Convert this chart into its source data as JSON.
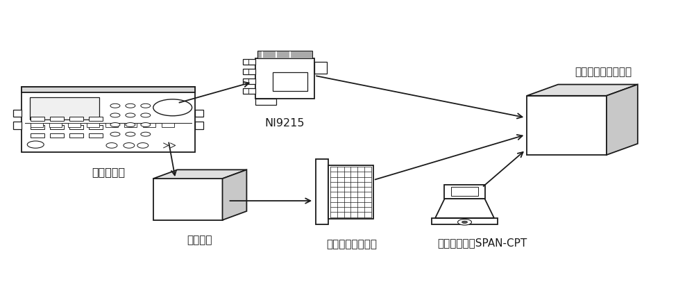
{
  "bg_color": "#ffffff",
  "line_color": "#1a1a1a",
  "fig_width": 10.0,
  "fig_height": 4.29,
  "labels": {
    "signal_gen": "信号发生器",
    "ni9215": "NI9215",
    "data_acq": "数据采集与控制系统",
    "readout": "读出电路",
    "first_board": "第一数据采集板卡",
    "inertial": "惯性导航系统SPAN-CPT"
  }
}
